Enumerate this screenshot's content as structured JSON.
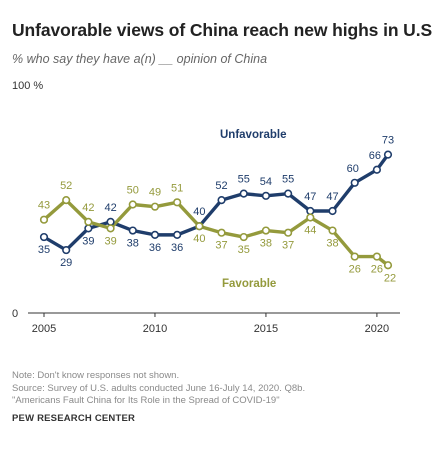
{
  "title": "Unfavorable views of China reach new highs in U.S.",
  "subtitle": "% who say they have a(n) __ opinion of China",
  "chart_data": {
    "type": "line",
    "ylim": [
      0,
      100
    ],
    "y_top_label": "100 %",
    "y_zero_label": "0",
    "x_ticks": [
      "2005",
      "2010",
      "2015",
      "2020"
    ],
    "series": [
      {
        "name": "Unfavorable",
        "color": "#1f3d6b",
        "points": [
          {
            "x": 2005,
            "y": 35
          },
          {
            "x": 2006,
            "y": 29
          },
          {
            "x": 2007,
            "y": 39
          },
          {
            "x": 2008,
            "y": 42
          },
          {
            "x": 2009,
            "y": 38
          },
          {
            "x": 2010,
            "y": 36
          },
          {
            "x": 2011,
            "y": 36
          },
          {
            "x": 2012,
            "y": 40
          },
          {
            "x": 2013,
            "y": 52
          },
          {
            "x": 2014,
            "y": 55
          },
          {
            "x": 2015,
            "y": 54
          },
          {
            "x": 2016,
            "y": 55
          },
          {
            "x": 2017,
            "y": 47
          },
          {
            "x": 2018,
            "y": 47
          },
          {
            "x": 2019,
            "y": 60
          },
          {
            "x": 2020,
            "y": 66
          },
          {
            "x": 2020.5,
            "y": 73
          }
        ]
      },
      {
        "name": "Favorable",
        "color": "#949a3c",
        "points": [
          {
            "x": 2005,
            "y": 43
          },
          {
            "x": 2006,
            "y": 52
          },
          {
            "x": 2007,
            "y": 42
          },
          {
            "x": 2008,
            "y": 39
          },
          {
            "x": 2009,
            "y": 50
          },
          {
            "x": 2010,
            "y": 49
          },
          {
            "x": 2011,
            "y": 51
          },
          {
            "x": 2012,
            "y": 40
          },
          {
            "x": 2013,
            "y": 37
          },
          {
            "x": 2014,
            "y": 35
          },
          {
            "x": 2015,
            "y": 38
          },
          {
            "x": 2016,
            "y": 37
          },
          {
            "x": 2017,
            "y": 44
          },
          {
            "x": 2018,
            "y": 38
          },
          {
            "x": 2019,
            "y": 26
          },
          {
            "x": 2020,
            "y": 26
          },
          {
            "x": 2020.5,
            "y": 22
          }
        ]
      }
    ]
  },
  "notes": {
    "note": "Note: Don't know responses not shown.",
    "source": "Source: Survey of U.S. adults conducted June 16-July 14, 2020. Q8b.",
    "report": "\"Americans Fault China for Its Role in the Spread of COVID-19\""
  },
  "source_org": "PEW RESEARCH CENTER"
}
